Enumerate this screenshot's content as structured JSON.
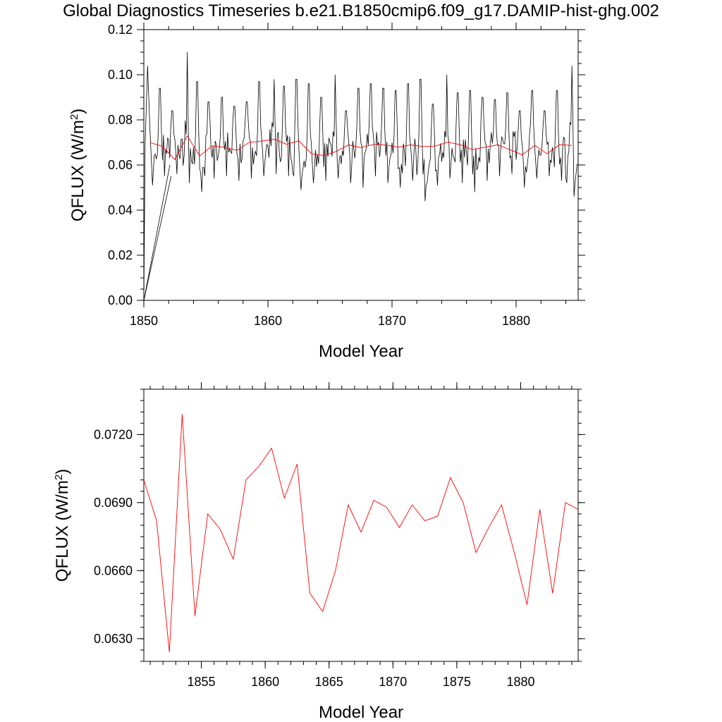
{
  "title": "Global Diagnostics Timeseries b.e21.B1850cmip6.f09_g17.DAMIP-hist-ghg.002",
  "colors": {
    "monthly": "#000000",
    "annual": "#ff0000"
  },
  "chart_data": [
    {
      "type": "line",
      "title": "Global Diagnostics Timeseries b.e21.B1850cmip6.f09_g17.DAMIP-hist-ghg.002",
      "xlabel": "Model Year",
      "ylabel": "QFLUX (W/m",
      "ylabel_sup": "2",
      "ylabel_tail": ")",
      "xlim": [
        1850,
        1885
      ],
      "ylim": [
        0,
        0.12
      ],
      "xticks": [
        1850,
        1860,
        1870,
        1880
      ],
      "yticks": [
        0,
        0.02,
        0.04,
        0.06,
        0.08,
        0.1,
        0.12
      ],
      "ytick_labels": [
        "0.00",
        "0.02",
        "0.04",
        "0.06",
        "0.08",
        "0.10",
        "0.12"
      ],
      "series": [
        {
          "color": "#000000",
          "description_values": "monthly",
          "start_points": [
            [
              1850.0,
              0.0
            ],
            [
              1850.1,
              0.069
            ],
            [
              1850.3,
              0.104
            ],
            [
              1850.5,
              0.075
            ],
            [
              1850.7,
              0.051
            ]
          ],
          "spike_x": [
            1850.3,
            1851.3,
            1852.3,
            1853.5,
            1854.3,
            1855.2,
            1856.3,
            1857.3,
            1858.3,
            1859.3,
            1860.5,
            1861.3,
            1862.3,
            1863.3,
            1864.3,
            1865.4,
            1866.3,
            1867.3,
            1868.3,
            1869.3,
            1870.3,
            1871.3,
            1872.3,
            1873.3,
            1874.4,
            1875.3,
            1876.3,
            1877.3,
            1878.3,
            1879.3,
            1880.3,
            1881.3,
            1882.3,
            1883.3,
            1884.5
          ],
          "spike_y": [
            0.104,
            0.094,
            0.084,
            0.11,
            0.097,
            0.088,
            0.09,
            0.086,
            0.088,
            0.097,
            0.098,
            0.095,
            0.098,
            0.096,
            0.09,
            0.1,
            0.084,
            0.094,
            0.096,
            0.094,
            0.093,
            0.096,
            0.098,
            0.087,
            0.1,
            0.092,
            0.093,
            0.09,
            0.089,
            0.092,
            0.084,
            0.093,
            0.084,
            0.093,
            0.104
          ],
          "trough_y": [
            0.051,
            0.055,
            0.056,
            0.052,
            0.048,
            0.054,
            0.055,
            0.053,
            0.054,
            0.055,
            0.056,
            0.055,
            0.049,
            0.052,
            0.053,
            0.054,
            0.052,
            0.05,
            0.055,
            0.052,
            0.05,
            0.053,
            0.044,
            0.051,
            0.054,
            0.052,
            0.048,
            0.053,
            0.055,
            0.056,
            0.05,
            0.054,
            0.055,
            0.053,
            0.046
          ]
        },
        {
          "color": "#ff0000",
          "description_values": "annual",
          "x": [
            1850.5,
            1851.5,
            1852.5,
            1853.5,
            1854.5,
            1855.5,
            1856.5,
            1857.5,
            1858.5,
            1859.5,
            1860.5,
            1861.5,
            1862.5,
            1863.5,
            1864.5,
            1865.5,
            1866.5,
            1867.5,
            1868.5,
            1869.5,
            1870.5,
            1871.5,
            1872.5,
            1873.5,
            1874.5,
            1875.5,
            1876.5,
            1877.5,
            1878.5,
            1879.5,
            1880.5,
            1881.5,
            1882.5,
            1883.5,
            1884.5
          ],
          "y": [
            0.07,
            0.0682,
            0.0624,
            0.0729,
            0.064,
            0.0685,
            0.0678,
            0.0665,
            0.07,
            0.0706,
            0.0714,
            0.0692,
            0.0707,
            0.065,
            0.0642,
            0.066,
            0.0689,
            0.0677,
            0.0691,
            0.0688,
            0.0679,
            0.0689,
            0.0682,
            0.0684,
            0.0701,
            0.069,
            0.0668,
            0.0679,
            0.0689,
            0.0668,
            0.0645,
            0.0687,
            0.065,
            0.069,
            0.0687
          ]
        }
      ]
    },
    {
      "type": "line",
      "xlabel": "Model Year",
      "ylabel": "QFLUX (W/m",
      "ylabel_sup": "2",
      "ylabel_tail": ")",
      "xlim": [
        1850.5,
        1884.5
      ],
      "ylim": [
        0.062,
        0.074
      ],
      "xticks": [
        1855,
        1860,
        1865,
        1870,
        1875,
        1880
      ],
      "yticks": [
        0.063,
        0.066,
        0.069,
        0.072
      ],
      "ytick_labels": [
        "0.0630",
        "0.0660",
        "0.0690",
        "0.0720"
      ],
      "series": [
        {
          "color": "#ff0000",
          "x": [
            1850.5,
            1851.5,
            1852.5,
            1853.5,
            1854.5,
            1855.5,
            1856.5,
            1857.5,
            1858.5,
            1859.5,
            1860.5,
            1861.5,
            1862.5,
            1863.5,
            1864.5,
            1865.5,
            1866.5,
            1867.5,
            1868.5,
            1869.5,
            1870.5,
            1871.5,
            1872.5,
            1873.5,
            1874.5,
            1875.5,
            1876.5,
            1877.5,
            1878.5,
            1879.5,
            1880.5,
            1881.5,
            1882.5,
            1883.5,
            1884.5
          ],
          "y": [
            0.07,
            0.0682,
            0.0624,
            0.0729,
            0.064,
            0.0685,
            0.0678,
            0.0665,
            0.07,
            0.0706,
            0.0714,
            0.0692,
            0.0707,
            0.065,
            0.0642,
            0.066,
            0.0689,
            0.0677,
            0.0691,
            0.0688,
            0.0679,
            0.0689,
            0.0682,
            0.0684,
            0.0701,
            0.069,
            0.0668,
            0.0679,
            0.0689,
            0.0668,
            0.0645,
            0.0687,
            0.065,
            0.069,
            0.0687
          ]
        }
      ]
    }
  ]
}
